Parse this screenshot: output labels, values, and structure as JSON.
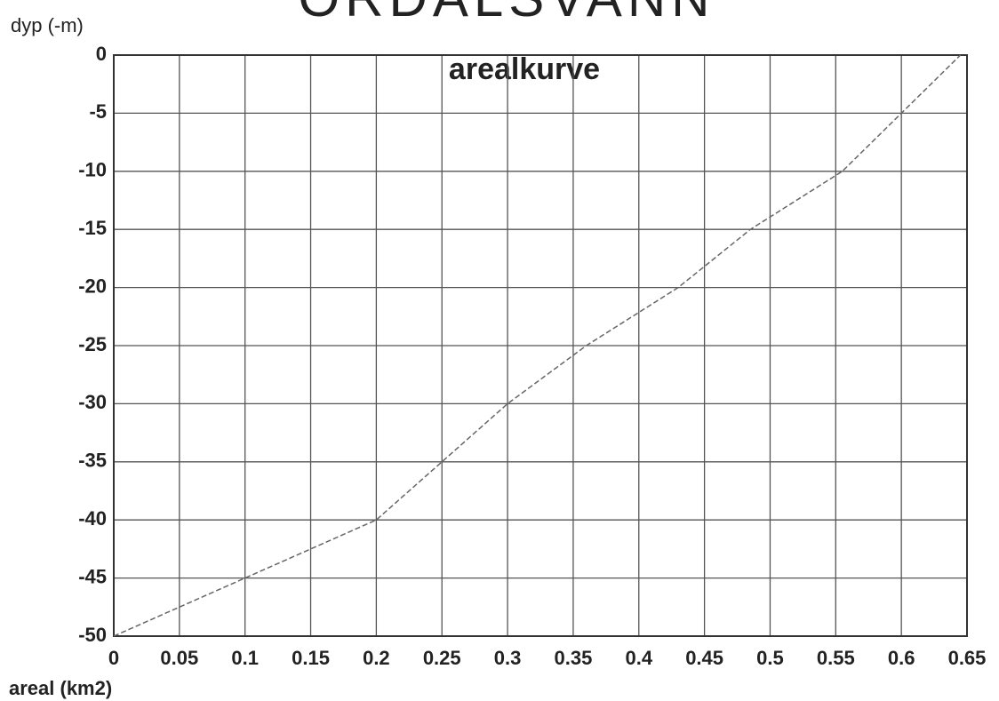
{
  "chart_data": {
    "type": "line",
    "title": "ORDALSVANN",
    "subtitle": "arealkurve",
    "y_label": "dyp (-m)",
    "x_label": "areal (km2)",
    "x": [
      0,
      0.1,
      0.2,
      0.25,
      0.3,
      0.36,
      0.43,
      0.485,
      0.555,
      0.6,
      0.645
    ],
    "series": [
      {
        "name": "arealkurve",
        "color": "#666666",
        "values": [
          -50,
          -45,
          -40,
          -35,
          -30,
          -25,
          -20,
          -15,
          -10,
          -5,
          0
        ]
      }
    ],
    "xlim": [
      0,
      0.65
    ],
    "xticks": [
      0,
      0.05,
      0.1,
      0.15,
      0.2,
      0.25,
      0.3,
      0.35,
      0.4,
      0.45,
      0.5,
      0.55,
      0.6,
      0.65
    ],
    "ylim": [
      -50,
      0
    ],
    "yticks": [
      0,
      -5,
      -10,
      -15,
      -20,
      -25,
      -30,
      -35,
      -40,
      -45,
      -50
    ],
    "grid": true
  }
}
